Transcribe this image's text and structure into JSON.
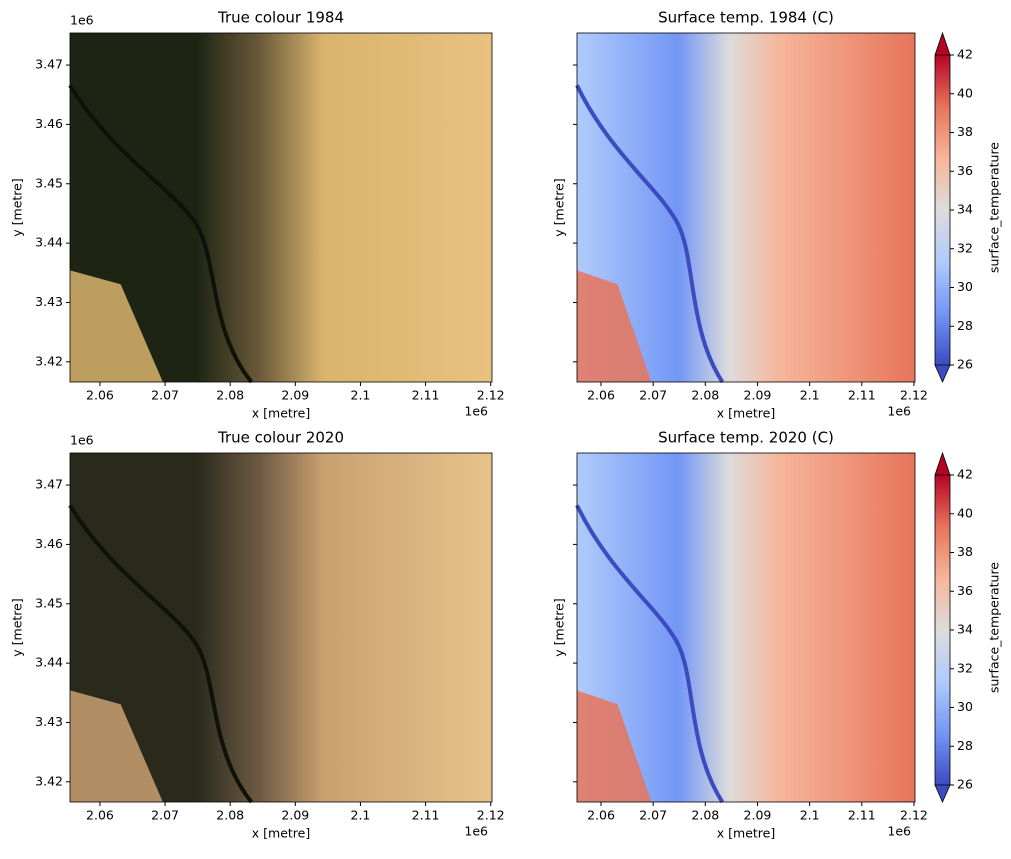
{
  "chart_data": [
    {
      "type": "image",
      "title": "True colour 1984",
      "xlabel": "x [metre]",
      "ylabel": "y [metre]",
      "x_offset": "1e6",
      "y_offset": "1e6",
      "xlim": [
        2.0554,
        2.1202
      ],
      "xticks": [
        2.06,
        2.07,
        2.08,
        2.09,
        2.1,
        2.11,
        2.12
      ],
      "ylim": [
        3.4166,
        3.4754
      ],
      "yticks": [
        3.42,
        3.43,
        3.44,
        3.45,
        3.46,
        3.47
      ],
      "palette": [
        "#1e2414",
        "#6b5a3a",
        "#d9b46e",
        "#e8c27e"
      ]
    },
    {
      "type": "image",
      "title": "Surface temp. 1984 (C)",
      "xlabel": "x [metre]",
      "ylabel": "y [metre]",
      "x_offset": "1e6",
      "xlim": [
        2.0554,
        2.1202
      ],
      "xticks": [
        2.06,
        2.07,
        2.08,
        2.09,
        2.1,
        2.11,
        2.12
      ],
      "ylim": [
        3.4166,
        3.4754
      ],
      "yticks": [
        3.42,
        3.43,
        3.44,
        3.45,
        3.46,
        3.47
      ],
      "colorbar": {
        "label": "surface_temperature",
        "lim": [
          26,
          42
        ],
        "ticks": [
          26,
          28,
          30,
          32,
          34,
          36,
          38,
          40,
          42
        ],
        "colors": [
          "#3b4cc0",
          "#7396f5",
          "#b0cbfc",
          "#dddcdc",
          "#f6b69a",
          "#e7745b",
          "#b40426"
        ]
      }
    },
    {
      "type": "image",
      "title": "True colour 2020",
      "xlabel": "x [metre]",
      "ylabel": "y [metre]",
      "x_offset": "1e6",
      "y_offset": "1e6",
      "xlim": [
        2.0554,
        2.1202
      ],
      "xticks": [
        2.06,
        2.07,
        2.08,
        2.09,
        2.1,
        2.11,
        2.12
      ],
      "ylim": [
        3.4166,
        3.4754
      ],
      "yticks": [
        3.42,
        3.43,
        3.44,
        3.45,
        3.46,
        3.47
      ],
      "palette": [
        "#2a2a1c",
        "#6e5a44",
        "#c9a070",
        "#e6c48c"
      ]
    },
    {
      "type": "image",
      "title": "Surface temp. 2020 (C)",
      "xlabel": "x [metre]",
      "ylabel": "y [metre]",
      "x_offset": "1e6",
      "xlim": [
        2.0554,
        2.1202
      ],
      "xticks": [
        2.06,
        2.07,
        2.08,
        2.09,
        2.1,
        2.11,
        2.12
      ],
      "ylim": [
        3.4166,
        3.4754
      ],
      "yticks": [
        3.42,
        3.43,
        3.44,
        3.45,
        3.46,
        3.47
      ],
      "colorbar": {
        "label": "surface_temperature",
        "lim": [
          26,
          42
        ],
        "ticks": [
          26,
          28,
          30,
          32,
          34,
          36,
          38,
          40,
          42
        ],
        "colors": [
          "#3b4cc0",
          "#7396f5",
          "#b0cbfc",
          "#dddcdc",
          "#f6b69a",
          "#e7745b",
          "#b40426"
        ]
      }
    }
  ]
}
